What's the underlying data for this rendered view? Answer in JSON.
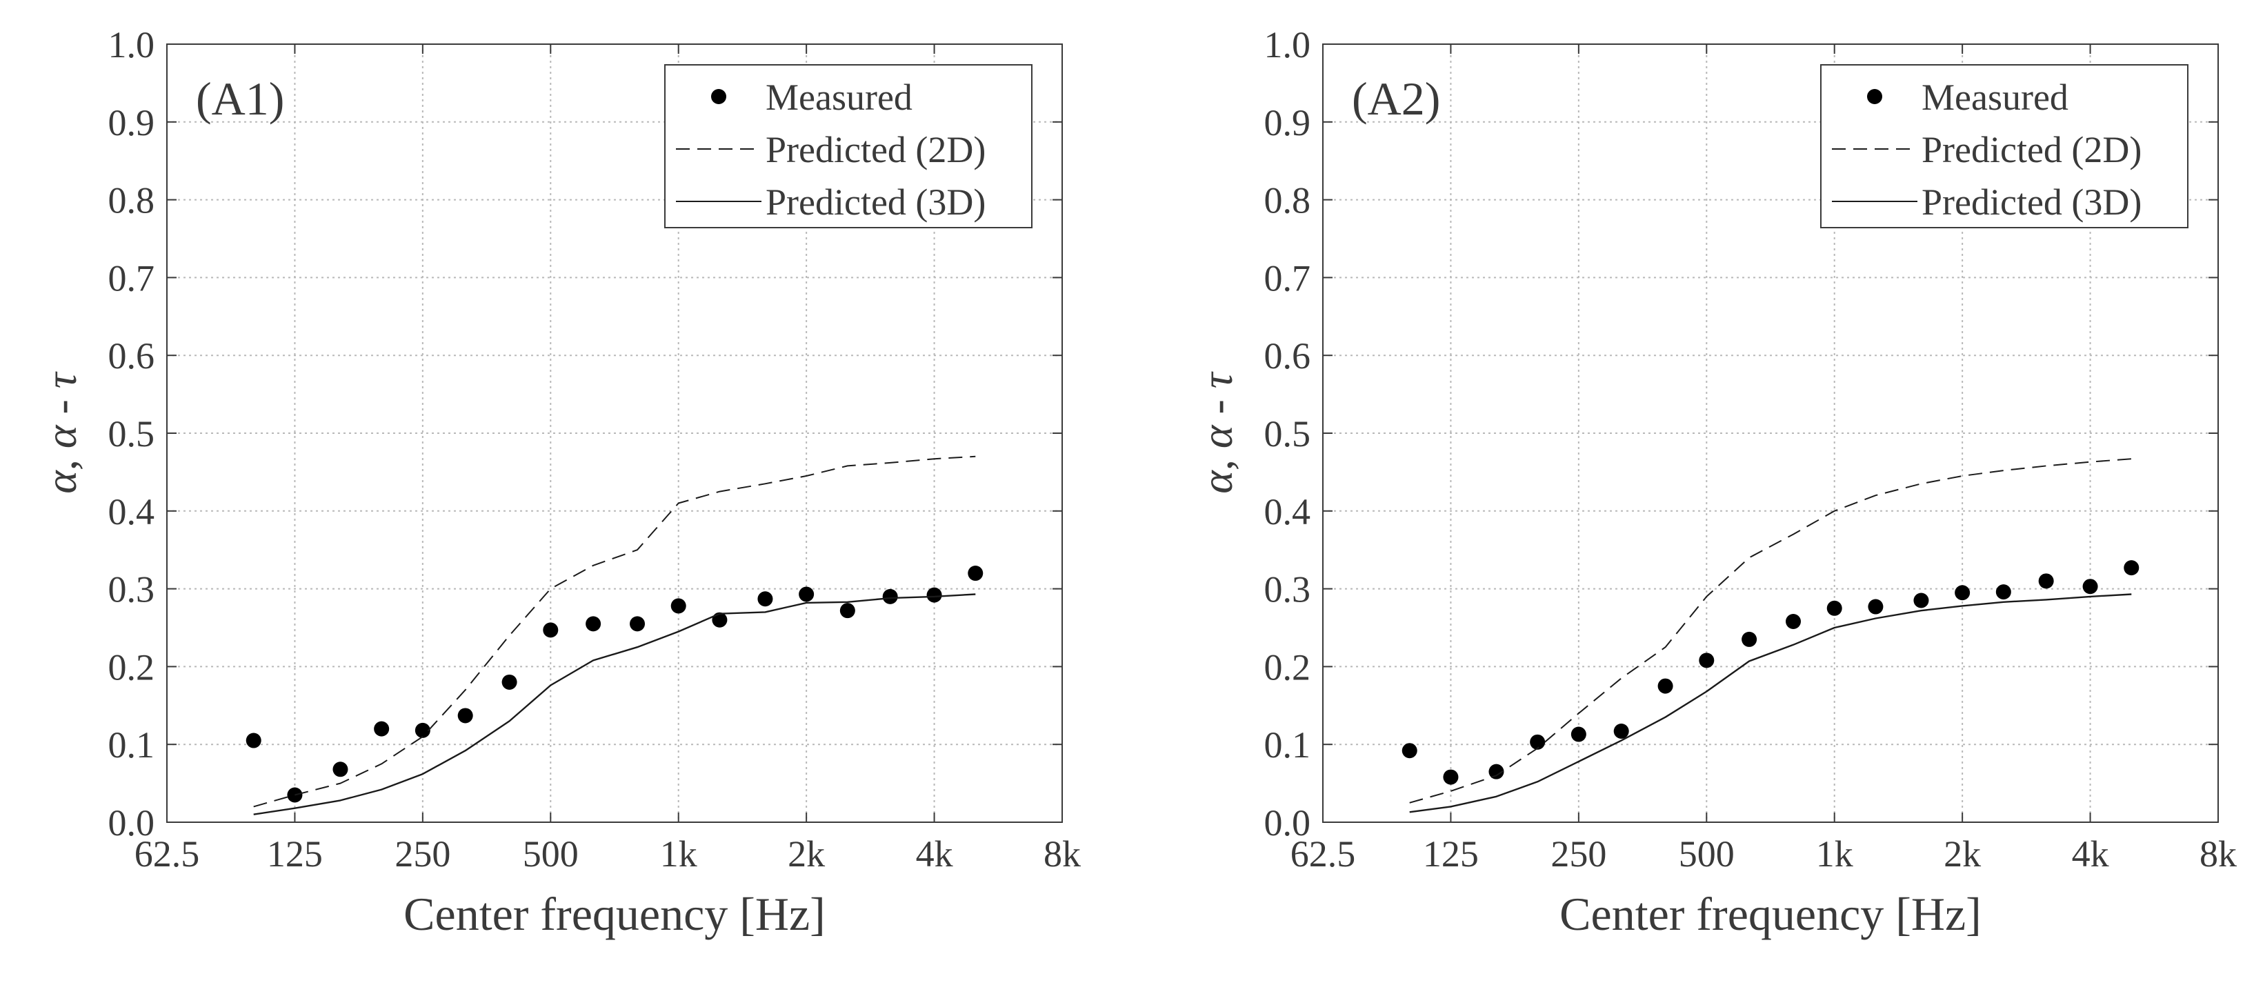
{
  "chart_data": [
    {
      "type": "line",
      "panel_label": "(A1)",
      "xscale": "log2",
      "xlabel": "Center frequency [Hz]",
      "ylabel": {
        "alpha": "α",
        "sep": ", ",
        "alpha2": "α",
        "dash": " - ",
        "tau": "τ"
      },
      "xlim": [
        62.5,
        8000
      ],
      "ylim": [
        0,
        1
      ],
      "grid": true,
      "legend_position": "top-right",
      "x_ticks": [
        62.5,
        125,
        250,
        500,
        1000,
        2000,
        4000,
        8000
      ],
      "x_tick_labels": [
        "62.5",
        "125",
        "250",
        "500",
        "1k",
        "2k",
        "4k",
        "8k"
      ],
      "y_ticks": [
        0,
        0.1,
        0.2,
        0.3,
        0.4,
        0.5,
        0.6,
        0.7,
        0.8,
        0.9,
        1.0
      ],
      "y_tick_labels": [
        "0.0",
        "0.1",
        "0.2",
        "0.3",
        "0.4",
        "0.5",
        "0.6",
        "0.7",
        "0.8",
        "0.9",
        "1.0"
      ],
      "x": [
        100,
        125,
        160,
        200,
        250,
        315,
        400,
        500,
        630,
        800,
        1000,
        1250,
        1600,
        2000,
        2500,
        3150,
        4000,
        5000
      ],
      "series": [
        {
          "name": "Measured",
          "style": "markers",
          "values": [
            0.105,
            0.035,
            0.068,
            0.12,
            0.118,
            0.137,
            0.18,
            0.247,
            0.255,
            0.255,
            0.278,
            0.26,
            0.287,
            0.293,
            0.272,
            0.29,
            0.292,
            0.32
          ]
        },
        {
          "name": "Predicted (2D)",
          "style": "dashed",
          "values": [
            0.02,
            0.035,
            0.05,
            0.075,
            0.11,
            0.17,
            0.24,
            0.3,
            0.33,
            0.35,
            0.41,
            0.425,
            0.435,
            0.445,
            0.458,
            0.462,
            0.467,
            0.47
          ]
        },
        {
          "name": "Predicted (3D)",
          "style": "solid",
          "values": [
            0.01,
            0.018,
            0.028,
            0.042,
            0.062,
            0.092,
            0.13,
            0.176,
            0.208,
            0.225,
            0.245,
            0.268,
            0.27,
            0.282,
            0.283,
            0.288,
            0.29,
            0.293
          ]
        }
      ]
    },
    {
      "type": "line",
      "panel_label": "(A2)",
      "xscale": "log2",
      "xlabel": "Center frequency [Hz]",
      "ylabel": {
        "alpha": "α",
        "sep": ", ",
        "alpha2": "α",
        "dash": " - ",
        "tau": "τ"
      },
      "xlim": [
        62.5,
        8000
      ],
      "ylim": [
        0,
        1
      ],
      "grid": true,
      "legend_position": "top-right",
      "x_ticks": [
        62.5,
        125,
        250,
        500,
        1000,
        2000,
        4000,
        8000
      ],
      "x_tick_labels": [
        "62.5",
        "125",
        "250",
        "500",
        "1k",
        "2k",
        "4k",
        "8k"
      ],
      "y_ticks": [
        0,
        0.1,
        0.2,
        0.3,
        0.4,
        0.5,
        0.6,
        0.7,
        0.8,
        0.9,
        1.0
      ],
      "y_tick_labels": [
        "0.0",
        "0.1",
        "0.2",
        "0.3",
        "0.4",
        "0.5",
        "0.6",
        "0.7",
        "0.8",
        "0.9",
        "1.0"
      ],
      "x": [
        100,
        125,
        160,
        200,
        250,
        315,
        400,
        500,
        630,
        800,
        1000,
        1250,
        1600,
        2000,
        2500,
        3150,
        4000,
        5000
      ],
      "series": [
        {
          "name": "Measured",
          "style": "markers",
          "values": [
            0.092,
            0.058,
            0.065,
            0.103,
            0.113,
            0.117,
            0.175,
            0.208,
            0.235,
            0.258,
            0.275,
            0.277,
            0.285,
            0.295,
            0.296,
            0.31,
            0.303,
            0.327
          ]
        },
        {
          "name": "Predicted (2D)",
          "style": "dashed",
          "values": [
            0.025,
            0.04,
            0.06,
            0.095,
            0.14,
            0.185,
            0.225,
            0.29,
            0.34,
            0.37,
            0.4,
            0.42,
            0.435,
            0.445,
            0.452,
            0.458,
            0.463,
            0.467
          ]
        },
        {
          "name": "Predicted (3D)",
          "style": "solid",
          "values": [
            0.013,
            0.02,
            0.033,
            0.052,
            0.078,
            0.105,
            0.135,
            0.168,
            0.207,
            0.228,
            0.25,
            0.262,
            0.272,
            0.278,
            0.283,
            0.286,
            0.29,
            0.293
          ]
        }
      ]
    }
  ]
}
